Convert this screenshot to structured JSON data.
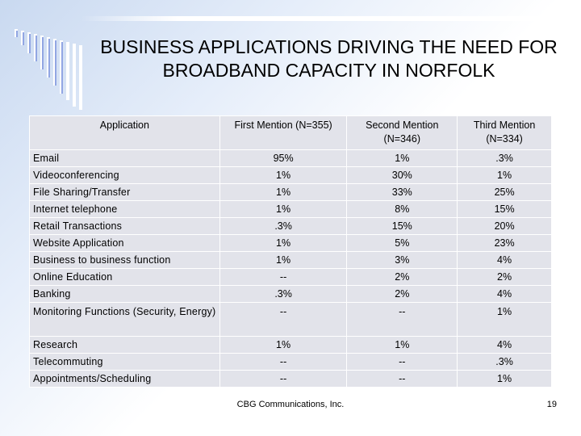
{
  "slide": {
    "title": "BUSINESS APPLICATIONS DRIVING THE NEED FOR BROADBAND CAPACITY IN NORFOLK",
    "footer": "CBG Communications, Inc.",
    "page_number": "19"
  },
  "table": {
    "headers": [
      "Application",
      "First Mention (N=355)",
      "Second Mention (N=346)",
      "Third Mention (N=334)"
    ],
    "rows": [
      {
        "name": "Email",
        "values": [
          "95%",
          "1%",
          ".3%"
        ]
      },
      {
        "name": "Videoconferencing",
        "values": [
          "1%",
          "30%",
          "1%"
        ]
      },
      {
        "name": "File Sharing/Transfer",
        "values": [
          "1%",
          "33%",
          "25%"
        ]
      },
      {
        "name": "Internet telephone",
        "values": [
          "1%",
          "8%",
          "15%"
        ]
      },
      {
        "name": "Retail Transactions",
        "values": [
          ".3%",
          "15%",
          "20%"
        ]
      },
      {
        "name": "Website Application",
        "values": [
          "1%",
          "5%",
          "23%"
        ]
      },
      {
        "name": "Business to business function",
        "values": [
          "1%",
          "3%",
          "4%"
        ]
      },
      {
        "name": "Online Education",
        "values": [
          "--",
          "2%",
          "2%"
        ]
      },
      {
        "name": "Banking",
        "values": [
          ".3%",
          "2%",
          "4%"
        ]
      },
      {
        "name": "Monitoring Functions (Security, Energy)",
        "values": [
          "--",
          "--",
          "1%"
        ]
      },
      {
        "name": "Research",
        "values": [
          "1%",
          "1%",
          "4%"
        ]
      },
      {
        "name": "Telecommuting",
        "values": [
          "--",
          "--",
          ".3%"
        ]
      },
      {
        "name": "Appointments/Scheduling",
        "values": [
          "--",
          "--",
          "1%"
        ]
      }
    ]
  },
  "colors": {
    "cell_background": "#e2e3ea",
    "decor_blue": "#3a5fcd"
  }
}
